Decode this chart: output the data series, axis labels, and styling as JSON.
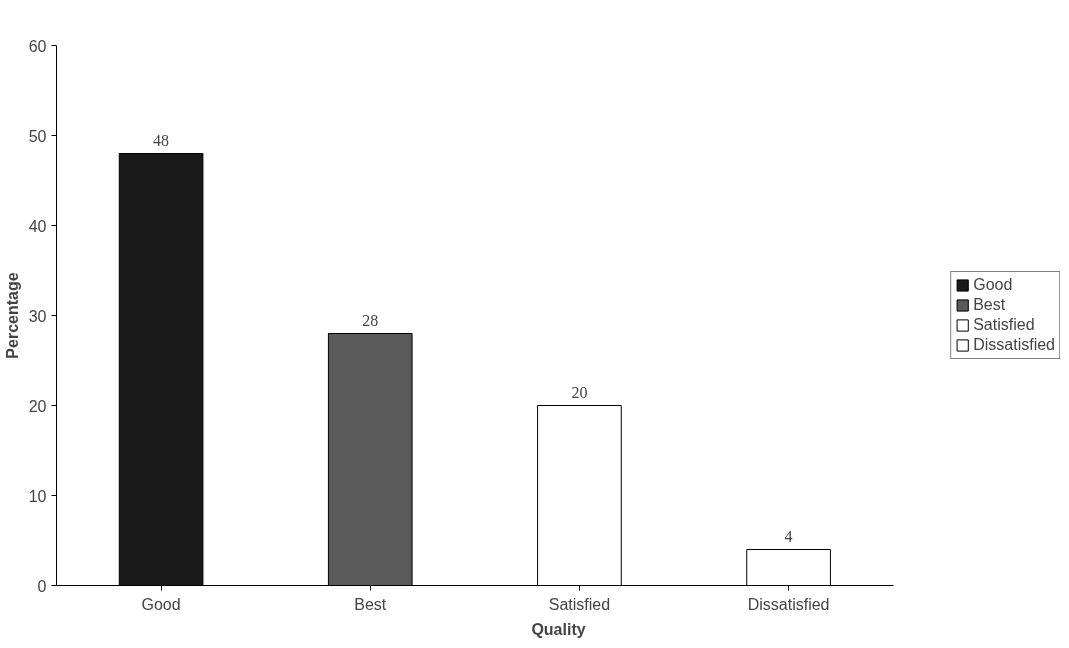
{
  "chart_data": {
    "type": "bar",
    "categories": [
      "Good",
      "Best",
      "Satisfied",
      "Dissatisfied"
    ],
    "series": [
      {
        "name": "Good",
        "color": "#1a1a1a",
        "values": [
          48,
          null,
          null,
          null
        ]
      },
      {
        "name": "Best",
        "color": "#5a5a5a",
        "values": [
          null,
          28,
          null,
          null
        ]
      },
      {
        "name": "Satisfied",
        "color": "#ffffff",
        "values": [
          null,
          null,
          20,
          null
        ]
      },
      {
        "name": "Dissatisfied",
        "color": "#ffffff",
        "values": [
          null,
          null,
          null,
          4
        ]
      }
    ],
    "xlabel": "Quality",
    "ylabel": "Percentage",
    "ylim": [
      0,
      60
    ],
    "yticks": [
      0,
      10,
      20,
      30,
      40,
      50,
      60
    ],
    "grid": false,
    "legend": "right",
    "data_labels": true
  }
}
